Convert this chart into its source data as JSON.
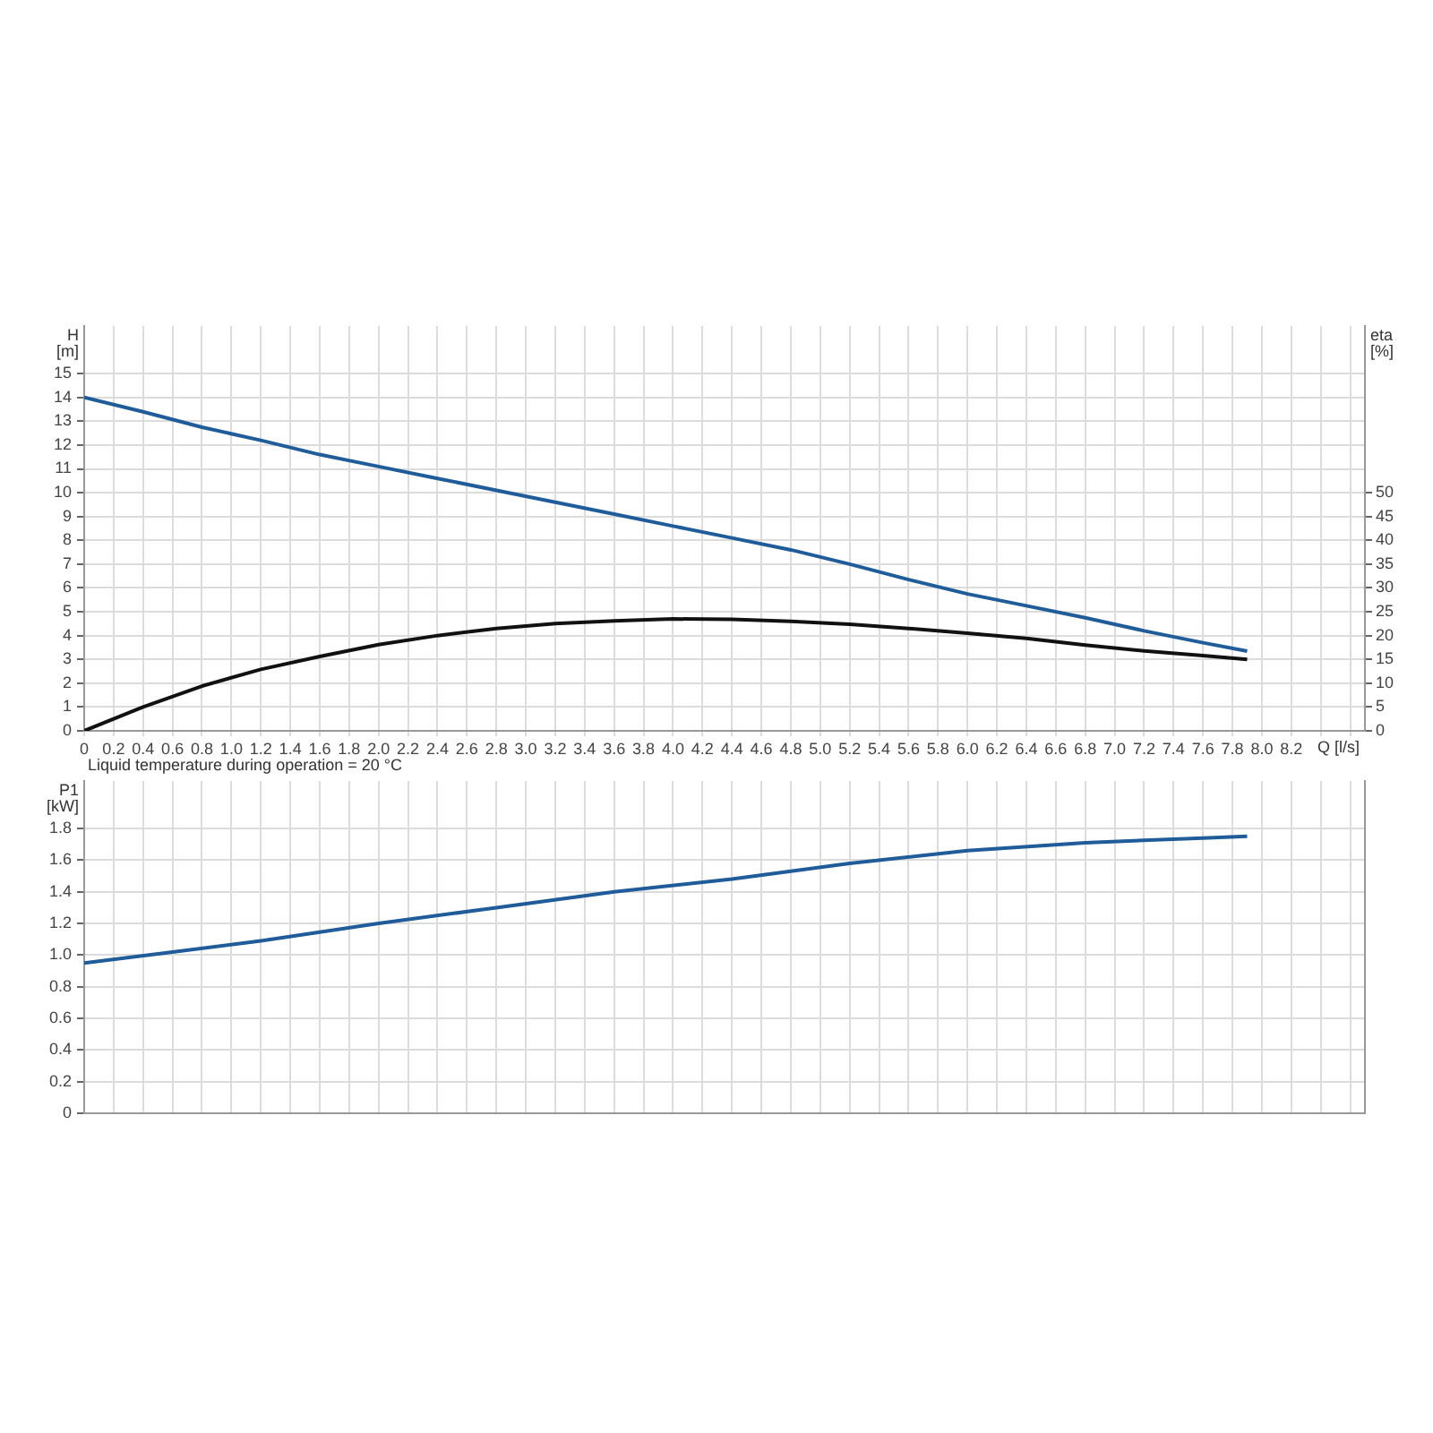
{
  "chart_data": [
    {
      "type": "line",
      "ylabel": "H [m]",
      "y2label": "eta [%]",
      "xlabel": "Q [l/s]",
      "grid": true,
      "xlim": [
        0,
        8.7
      ],
      "ylim": [
        0,
        17
      ],
      "y2lim": [
        0,
        85
      ],
      "xticks": [
        0,
        0.2,
        0.4,
        0.6,
        0.8,
        {
          "value": 1,
          "label": "1.0"
        },
        1.2,
        1.4,
        1.6,
        1.8,
        {
          "value": 2,
          "label": "2.0"
        },
        2.2,
        2.4,
        2.6,
        2.8,
        {
          "value": 3,
          "label": "3.0"
        },
        3.2,
        3.4,
        3.6,
        3.8,
        {
          "value": 4,
          "label": "4.0"
        },
        4.2,
        4.4,
        4.6,
        4.8,
        {
          "value": 5,
          "label": "5.0"
        },
        5.2,
        5.4,
        5.6,
        5.8,
        {
          "value": 6,
          "label": "6.0"
        },
        6.2,
        6.4,
        6.6,
        6.8,
        {
          "value": 7,
          "label": "7.0"
        },
        7.2,
        7.4,
        7.6,
        7.8,
        {
          "value": 8,
          "label": "8.0"
        },
        8.2,
        {
          "value": 8.4,
          "label": null
        },
        {
          "value": 8.6,
          "label": null
        }
      ],
      "yticks": [
        0,
        1,
        2,
        3,
        4,
        5,
        6,
        7,
        8,
        9,
        10,
        11,
        12,
        13,
        14,
        15
      ],
      "y2ticks": [
        0,
        5,
        10,
        15,
        20,
        25,
        30,
        35,
        40,
        45,
        50
      ],
      "series": [
        {
          "color": "#1f5c99",
          "x": [
            0,
            0.4,
            0.8,
            1.2,
            1.6,
            2.0,
            2.4,
            2.8,
            3.2,
            3.6,
            4.0,
            4.4,
            4.8,
            5.2,
            5.6,
            6.0,
            6.4,
            6.8,
            7.2,
            7.6,
            7.9
          ],
          "values": [
            14,
            13.4,
            12.75,
            12.2,
            11.6,
            11.1,
            10.6,
            10.1,
            9.6,
            9.1,
            8.6,
            8.1,
            7.6,
            7.0,
            6.35,
            5.75,
            5.25,
            4.75,
            4.2,
            3.7,
            3.35
          ]
        },
        {
          "color": "#111111",
          "axis": "y2",
          "x": [
            0,
            0.4,
            0.8,
            1.2,
            1.6,
            2.0,
            2.4,
            2.8,
            3.2,
            3.6,
            4.0,
            4.4,
            4.8,
            5.2,
            5.6,
            6.0,
            6.4,
            6.8,
            7.2,
            7.6,
            7.9
          ],
          "values": [
            0,
            5,
            9.4,
            12.9,
            15.6,
            18.1,
            20,
            21.5,
            22.5,
            23.1,
            23.5,
            23.4,
            23,
            22.4,
            21.5,
            20.5,
            19.4,
            18,
            16.8,
            15.8,
            15
          ]
        }
      ]
    },
    {
      "type": "line",
      "ylabel": "P1 [kW]",
      "grid": true,
      "tick_labels": "y",
      "annotations": [
        "Liquid temperature during operation = 20 °C"
      ],
      "xlim": [
        0,
        8.7
      ],
      "ylim": [
        0,
        2.1
      ],
      "xticks": [
        0,
        0.2,
        0.4,
        0.6,
        0.8,
        1,
        1.2,
        1.4,
        1.6,
        1.8,
        2,
        2.2,
        2.4,
        2.6,
        2.8,
        3,
        3.2,
        3.4,
        3.6,
        3.8,
        4,
        4.2,
        4.4,
        4.6,
        4.8,
        5,
        5.2,
        5.4,
        5.6,
        5.8,
        6,
        6.2,
        6.4,
        6.6,
        6.8,
        7,
        7.2,
        7.4,
        7.6,
        7.8,
        8,
        8.2,
        8.4,
        8.6
      ],
      "yticks": [
        0,
        0.2,
        0.4,
        0.6,
        0.8,
        {
          "value": 1,
          "label": "1.0"
        },
        1.2,
        1.4,
        1.6,
        1.8
      ],
      "series": [
        {
          "color": "#1f5c99",
          "x": [
            0,
            0.6,
            1.2,
            2.0,
            2.8,
            3.6,
            4.4,
            5.2,
            6.0,
            6.8,
            7.6,
            7.9
          ],
          "values": [
            0.95,
            1.02,
            1.09,
            1.2,
            1.3,
            1.4,
            1.48,
            1.58,
            1.66,
            1.71,
            1.74,
            1.75
          ]
        }
      ]
    }
  ]
}
